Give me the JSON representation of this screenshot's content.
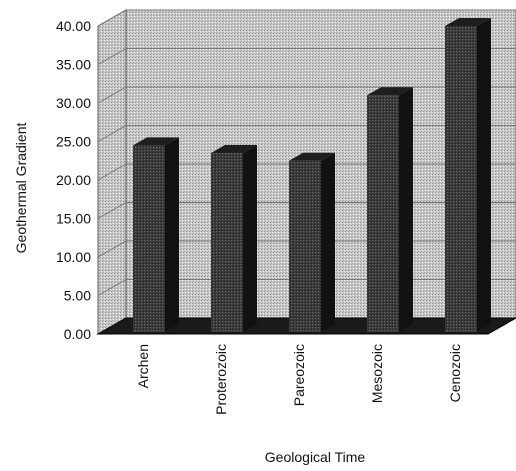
{
  "chart_data": {
    "type": "bar",
    "categories": [
      "Archen",
      "Proterozoic",
      "Pareozoic",
      "Mesozoic",
      "Cenozoic"
    ],
    "values": [
      24.5,
      23.5,
      22.5,
      31.0,
      40.0
    ],
    "xlabel": "Geological Time",
    "ylabel": "Geothermal Gradient",
    "ylim": [
      0,
      40
    ],
    "yticks": [
      "0.00",
      "5.00",
      "10.00",
      "15.00",
      "20.00",
      "25.00",
      "30.00",
      "35.00",
      "40.00"
    ],
    "grid": true,
    "legend": "none",
    "style": "3d",
    "colors": {
      "background": "#c9c9c9",
      "bar_front": "#3a3a3a",
      "bar_side": "#111111",
      "bar_top": "#1e1e1e",
      "grid": "#777777"
    }
  }
}
